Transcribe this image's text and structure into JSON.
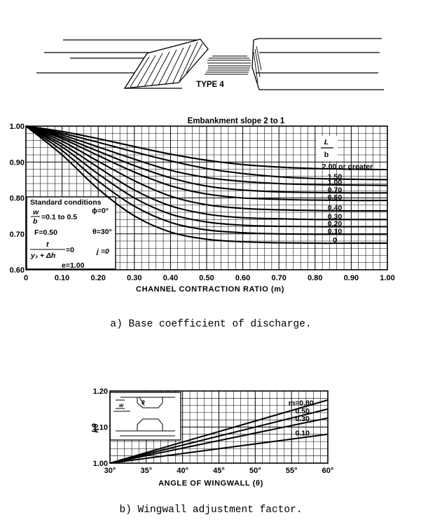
{
  "diagram": {
    "type_label": "TYPE 4"
  },
  "captions": {
    "a": "a) Base coefficient of discharge.",
    "b": "b) Wingwall adjustment factor."
  },
  "conditions": {
    "heading": "Standard conditions",
    "w_num": "w",
    "w_den": "b",
    "w_range": "=0.1 to 0.5",
    "phi": "ϕ=0°",
    "F": "F=0.50",
    "theta": "θ=30°",
    "t_num": "t",
    "t_den": "y₃ + Δh",
    "t_eq": "=0",
    "j": "j =0",
    "e": "e=1.00"
  },
  "chart_data": [
    {
      "type": "line",
      "title": "Embankment slope 2 to 1",
      "xlabel": "CHANNEL CONTRACTION RATIO (m)",
      "ylabel": "",
      "xlim": [
        0,
        1.0
      ],
      "ylim": [
        0.6,
        1.0
      ],
      "xticks": [
        "0",
        "0.10",
        "0.20",
        "0.30",
        "0.40",
        "0.50",
        "0.60",
        "0.70",
        "0.80",
        "0.90",
        "1.00"
      ],
      "yticks": [
        "0.60",
        "0.70",
        "0.80",
        "0.90",
        "1.00"
      ],
      "grid": true,
      "series_param_label_top": "L",
      "series_param_label_bottom": "b",
      "x": [
        0,
        0.1,
        0.2,
        0.3,
        0.4,
        0.5,
        0.6,
        0.7,
        0.8,
        0.9,
        1.0
      ],
      "series": [
        {
          "name": "2.00 or greater",
          "values": [
            1.0,
            0.985,
            0.965,
            0.943,
            0.922,
            0.905,
            0.893,
            0.886,
            0.882,
            0.88,
            0.879
          ]
        },
        {
          "name": "1.50",
          "values": [
            1.0,
            0.98,
            0.955,
            0.928,
            0.903,
            0.882,
            0.868,
            0.859,
            0.854,
            0.852,
            0.851
          ]
        },
        {
          "name": "1.00",
          "values": [
            1.0,
            0.975,
            0.942,
            0.908,
            0.877,
            0.857,
            0.846,
            0.84,
            0.837,
            0.836,
            0.835
          ]
        },
        {
          "name": "0.70",
          "values": [
            1.0,
            0.97,
            0.93,
            0.89,
            0.856,
            0.833,
            0.822,
            0.817,
            0.815,
            0.814,
            0.814
          ]
        },
        {
          "name": "0.50",
          "values": [
            1.0,
            0.965,
            0.918,
            0.872,
            0.834,
            0.811,
            0.8,
            0.796,
            0.794,
            0.793,
            0.793
          ]
        },
        {
          "name": "0.40",
          "values": [
            1.0,
            0.958,
            0.902,
            0.848,
            0.805,
            0.781,
            0.771,
            0.767,
            0.765,
            0.764,
            0.764
          ]
        },
        {
          "name": "0.30",
          "values": [
            1.0,
            0.95,
            0.885,
            0.822,
            0.778,
            0.755,
            0.745,
            0.742,
            0.74,
            0.74,
            0.74
          ]
        },
        {
          "name": "0.20",
          "values": [
            1.0,
            0.942,
            0.867,
            0.8,
            0.755,
            0.733,
            0.724,
            0.721,
            0.72,
            0.72,
            0.72
          ]
        },
        {
          "name": "0.10",
          "values": [
            1.0,
            0.932,
            0.847,
            0.777,
            0.732,
            0.711,
            0.703,
            0.7,
            0.699,
            0.699,
            0.699
          ]
        },
        {
          "name": "0",
          "values": [
            1.0,
            0.92,
            0.825,
            0.75,
            0.705,
            0.685,
            0.678,
            0.675,
            0.674,
            0.674,
            0.674
          ]
        }
      ]
    },
    {
      "type": "line",
      "title": "",
      "xlabel": "ANGLE OF WINGWALL (θ)",
      "ylabel": "kθ",
      "xlim": [
        30,
        60
      ],
      "ylim": [
        1.0,
        1.2
      ],
      "xticks": [
        "30°",
        "35°",
        "40°",
        "45°",
        "50°",
        "55°",
        "60°"
      ],
      "yticks": [
        "1.00",
        "1.10",
        "1.20"
      ],
      "grid": true,
      "x": [
        30,
        60
      ],
      "series": [
        {
          "name": "m=0.80",
          "values": [
            1.0,
            1.175
          ]
        },
        {
          "name": "0.50",
          "values": [
            1.0,
            1.15
          ]
        },
        {
          "name": "0.30",
          "values": [
            1.0,
            1.125
          ]
        },
        {
          "name": "0.10",
          "values": [
            1.0,
            1.08
          ]
        }
      ]
    }
  ]
}
